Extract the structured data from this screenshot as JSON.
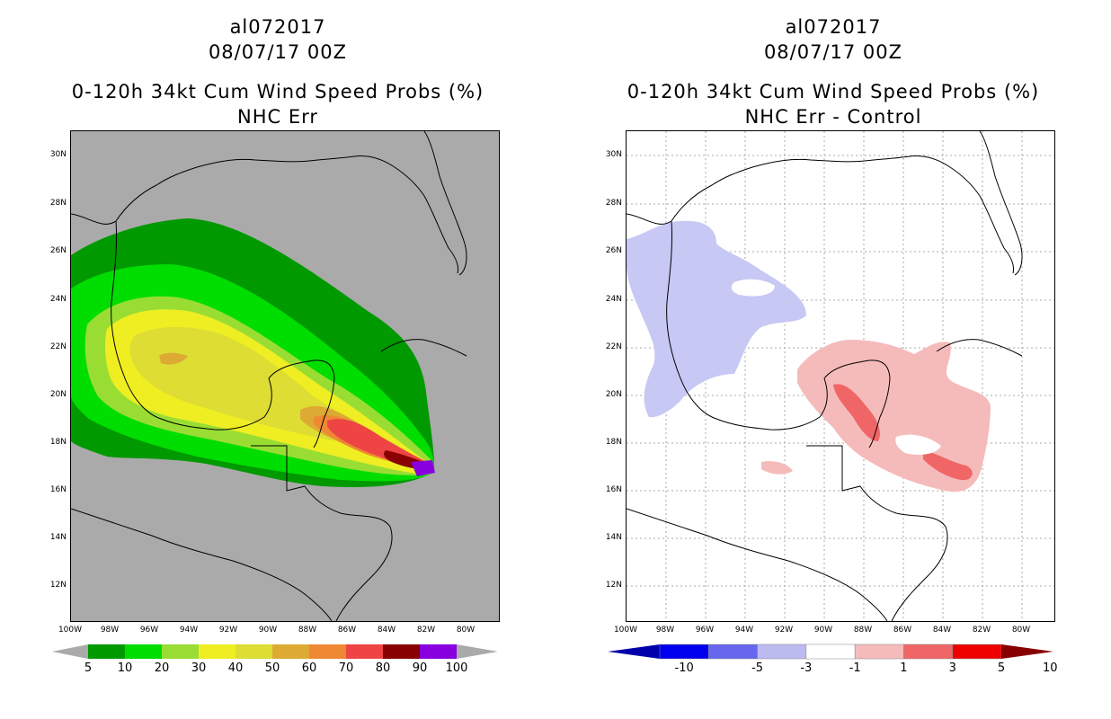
{
  "left_panel": {
    "storm_id": "al072017",
    "datetime": "08/07/17 00Z",
    "product": "0-120h 34kt Cum Wind Speed Probs (%)",
    "subtitle": "NHC Err",
    "colors": {
      "background": "#aaaaaa"
    },
    "colorbar": {
      "labels": [
        "5",
        "10",
        "20",
        "30",
        "40",
        "50",
        "60",
        "70",
        "80",
        "90",
        "100"
      ],
      "colors": [
        "#009900",
        "#00dd00",
        "#99dd33",
        "#eeee22",
        "#dddd33",
        "#ddaa33",
        "#ee8833",
        "#ee4444",
        "#880000",
        "#8800dd"
      ]
    }
  },
  "right_panel": {
    "storm_id": "al072017",
    "datetime": "08/07/17 00Z",
    "product": "0-120h 34kt Cum Wind Speed Probs (%)",
    "subtitle": "NHC Err - Control",
    "colorbar": {
      "labels": [
        "-10",
        "-5",
        "-3",
        "-1",
        "1",
        "3",
        "5",
        "10"
      ],
      "colors": [
        "#0000aa",
        "#0000ee",
        "#6666ee",
        "#bbbbf0",
        "#ffffff",
        "#f5bbbb",
        "#f06666",
        "#ee0000",
        "#880000"
      ]
    }
  },
  "axes": {
    "lat_labels": [
      "30N",
      "28N",
      "26N",
      "24N",
      "22N",
      "20N",
      "18N",
      "16N",
      "14N",
      "12N"
    ],
    "lon_labels": [
      "100W",
      "98W",
      "96W",
      "94W",
      "92W",
      "90W",
      "88W",
      "86W",
      "84W",
      "82W",
      "80W"
    ]
  }
}
